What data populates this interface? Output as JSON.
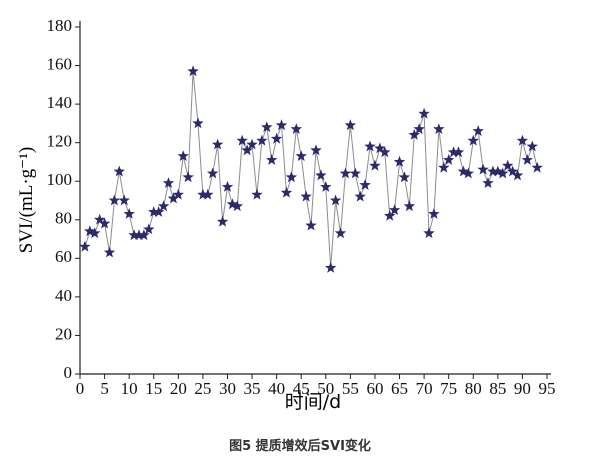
{
  "chart_data": {
    "type": "line",
    "x_label": "时间/d",
    "y_label": "SVI/(mL·g⁻¹)",
    "caption": "图5 提质增效后SVI变化",
    "x": [
      1,
      2,
      3,
      4,
      5,
      6,
      7,
      8,
      9,
      10,
      11,
      12,
      13,
      14,
      15,
      16,
      17,
      18,
      19,
      20,
      21,
      22,
      23,
      24,
      25,
      26,
      27,
      28,
      29,
      30,
      31,
      32,
      33,
      34,
      35,
      36,
      37,
      38,
      39,
      40,
      41,
      42,
      43,
      44,
      45,
      46,
      47,
      48,
      49,
      50,
      51,
      52,
      53,
      54,
      55,
      56,
      57,
      58,
      59,
      60,
      61,
      62,
      63,
      64,
      65,
      66,
      67,
      68,
      69,
      70,
      71,
      72,
      73,
      74,
      75,
      76,
      77,
      78,
      79,
      80,
      81,
      82,
      83,
      84,
      85,
      86,
      87,
      88,
      89,
      90,
      91,
      92,
      93
    ],
    "series": [
      {
        "color": "#2b2a6b",
        "line_color": "#8c8c8c",
        "marker": "star",
        "values": [
          66,
          74,
          73,
          80,
          78,
          63,
          90,
          105,
          90,
          83,
          72,
          72,
          72,
          75,
          84,
          84,
          87,
          99,
          91,
          93,
          113,
          102,
          157,
          130,
          93,
          93,
          104,
          119,
          79,
          97,
          88,
          87,
          121,
          116,
          119,
          93,
          121,
          128,
          111,
          122,
          129,
          94,
          102,
          127,
          113,
          92,
          77,
          116,
          103,
          97,
          55,
          90,
          73,
          104,
          129,
          104,
          92,
          98,
          118,
          108,
          117,
          115,
          82,
          85,
          110,
          102,
          87,
          124,
          127,
          135,
          73,
          83,
          127,
          107,
          111,
          115,
          115,
          105,
          104,
          121,
          126,
          106,
          99,
          105,
          105,
          104,
          108,
          105,
          103,
          121,
          111,
          118,
          107
        ]
      }
    ],
    "xlim": [
      0,
      95
    ],
    "xticks": [
      0,
      5,
      10,
      15,
      20,
      25,
      30,
      35,
      40,
      45,
      50,
      55,
      60,
      65,
      70,
      75,
      80,
      85,
      90,
      95
    ],
    "ylim": [
      0,
      180
    ],
    "yticks": [
      0,
      20,
      40,
      60,
      80,
      100,
      120,
      140,
      160,
      180
    ]
  }
}
